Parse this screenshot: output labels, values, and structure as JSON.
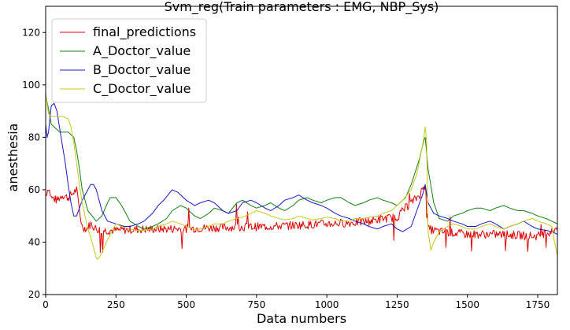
{
  "chart_data": {
    "type": "line",
    "title": "Svm_reg(Train parameters : EMG, NBP_Sys)",
    "xlabel": "Data numbers",
    "ylabel": "anesthesia",
    "xlim": [
      0,
      1820
    ],
    "ylim": [
      20,
      130
    ],
    "xticks": [
      0,
      250,
      500,
      750,
      1000,
      1250,
      1500,
      1750
    ],
    "yticks": [
      20,
      40,
      60,
      80,
      100,
      120
    ],
    "grid": false,
    "legend_position": "top-left",
    "series": [
      {
        "name": "final_predictions",
        "color": "#e00000",
        "noise": 1.6,
        "x": [
          0,
          10,
          20,
          40,
          60,
          80,
          100,
          110,
          120,
          130,
          145,
          160,
          180,
          200,
          250,
          300,
          400,
          500,
          600,
          700,
          800,
          900,
          1000,
          1100,
          1150,
          1200,
          1250,
          1270,
          1300,
          1330,
          1350,
          1355,
          1360,
          1400,
          1450,
          1500,
          1550,
          1600,
          1650,
          1700,
          1750,
          1800,
          1820
        ],
        "y": [
          58,
          61,
          57,
          56,
          58,
          57,
          59,
          60,
          52,
          46,
          45,
          47,
          45,
          44.5,
          44.5,
          44.8,
          45,
          45.2,
          45.5,
          45.8,
          46,
          46.5,
          47,
          47.5,
          48,
          49,
          49.5,
          52,
          55,
          58,
          62,
          58,
          45,
          44,
          43.5,
          43,
          43,
          43,
          42.8,
          42.5,
          42.3,
          44,
          46
        ]
      },
      {
        "name": "A_Doctor_value",
        "color": "#118011",
        "noise": 0,
        "x": [
          0,
          10,
          20,
          50,
          80,
          100,
          110,
          120,
          130,
          150,
          180,
          200,
          220,
          230,
          250,
          270,
          290,
          300,
          330,
          350,
          380,
          400,
          430,
          450,
          480,
          500,
          530,
          550,
          580,
          600,
          630,
          650,
          680,
          700,
          730,
          750,
          780,
          800,
          830,
          850,
          880,
          900,
          930,
          950,
          980,
          1000,
          1030,
          1050,
          1080,
          1100,
          1130,
          1150,
          1180,
          1200,
          1230,
          1250,
          1280,
          1300,
          1330,
          1345,
          1350,
          1360,
          1380,
          1400,
          1430,
          1450,
          1480,
          1500,
          1530,
          1550,
          1580,
          1600,
          1630,
          1650,
          1680,
          1700,
          1730,
          1750,
          1780,
          1800,
          1820
        ],
        "y": [
          96,
          91,
          85,
          82,
          82,
          80,
          75,
          68,
          60,
          52,
          48,
          50,
          55,
          57,
          57,
          54,
          50,
          48,
          46,
          45,
          46,
          47,
          49,
          52,
          54,
          53,
          50,
          49,
          51,
          53,
          52,
          51,
          55,
          56,
          54,
          53,
          54,
          55,
          53,
          52,
          54,
          56,
          57,
          56,
          55,
          56,
          57,
          57,
          55,
          54,
          55,
          56,
          57,
          56,
          55,
          54,
          57,
          62,
          72,
          79,
          80,
          68,
          55,
          49,
          48,
          50,
          51,
          52,
          53,
          53,
          52,
          53,
          54,
          53,
          52,
          52,
          51,
          50,
          49,
          48,
          47
        ]
      },
      {
        "name": "B_Doctor_value",
        "color": "#1818c8",
        "noise": 0,
        "x": [
          0,
          5,
          10,
          20,
          30,
          40,
          55,
          70,
          80,
          90,
          100,
          110,
          120,
          130,
          140,
          150,
          160,
          170,
          180,
          190,
          200,
          220,
          250,
          280,
          300,
          330,
          350,
          380,
          400,
          420,
          450,
          470,
          500,
          530,
          550,
          580,
          600,
          630,
          650,
          680,
          700,
          730,
          750,
          780,
          800,
          830,
          850,
          880,
          900,
          930,
          950,
          980,
          1000,
          1030,
          1050,
          1080,
          1100,
          1130,
          1150,
          1180,
          1200,
          1230,
          1250,
          1270,
          1300,
          1320,
          1340,
          1350,
          1360,
          1380,
          1400,
          1430,
          1450,
          1480,
          1500,
          1530,
          1550,
          1580,
          1600,
          1630,
          1650,
          1680,
          1700,
          1730,
          1750,
          1780,
          1800,
          1820
        ],
        "y": [
          85,
          80,
          82,
          92,
          93,
          90,
          80,
          70,
          62,
          55,
          50,
          50,
          53,
          56,
          58,
          60,
          62,
          62,
          60,
          56,
          52,
          48,
          47,
          46,
          46,
          47,
          48,
          51,
          54,
          56,
          60,
          59,
          56,
          54,
          55,
          56,
          55,
          52,
          51,
          52,
          55,
          56,
          55,
          53,
          52,
          54,
          56,
          57,
          58,
          56,
          55,
          54,
          53,
          51,
          50,
          49,
          48,
          47,
          46,
          45,
          46,
          47,
          45,
          44,
          46,
          52,
          58,
          62,
          55,
          51,
          50,
          49,
          48,
          47,
          46,
          46,
          47,
          48,
          47,
          45,
          46,
          47,
          48,
          46,
          45,
          44.5,
          44,
          43
        ]
      },
      {
        "name": "C_Doctor_value",
        "color": "#c8c818",
        "noise": 0,
        "x": [
          0,
          10,
          20,
          40,
          60,
          80,
          90,
          100,
          110,
          120,
          130,
          140,
          150,
          160,
          170,
          180,
          185,
          190,
          200,
          220,
          240,
          250,
          270,
          300,
          330,
          350,
          380,
          400,
          430,
          450,
          480,
          500,
          530,
          550,
          580,
          600,
          630,
          650,
          680,
          700,
          730,
          750,
          780,
          800,
          830,
          850,
          880,
          900,
          930,
          950,
          980,
          1000,
          1030,
          1050,
          1080,
          1100,
          1130,
          1150,
          1180,
          1200,
          1230,
          1250,
          1270,
          1300,
          1320,
          1335,
          1345,
          1350,
          1355,
          1360,
          1370,
          1380,
          1400,
          1430,
          1450,
          1480,
          1500,
          1530,
          1550,
          1580,
          1600,
          1630,
          1650,
          1680,
          1700,
          1730,
          1750,
          1780,
          1800,
          1810,
          1820
        ],
        "y": [
          97,
          89,
          88,
          88,
          88,
          87,
          84,
          78,
          70,
          62,
          55,
          50,
          45,
          42,
          38,
          34,
          33.5,
          34,
          36,
          41,
          45,
          47,
          46,
          45,
          44.5,
          44.5,
          45,
          46,
          47,
          48,
          47,
          46,
          45,
          45,
          46,
          47,
          47,
          48,
          49,
          49.5,
          51,
          52,
          51,
          50,
          49,
          48.5,
          49,
          50,
          49,
          48.5,
          49,
          49.5,
          49,
          48,
          48,
          49,
          49,
          49.5,
          50,
          51,
          52,
          54,
          56,
          60,
          66,
          74,
          80,
          84,
          78,
          44,
          37,
          40,
          44,
          46,
          47,
          46,
          45,
          45,
          46,
          47,
          46,
          45,
          46,
          47,
          48,
          49,
          48,
          47,
          46,
          40,
          35
        ]
      }
    ]
  }
}
